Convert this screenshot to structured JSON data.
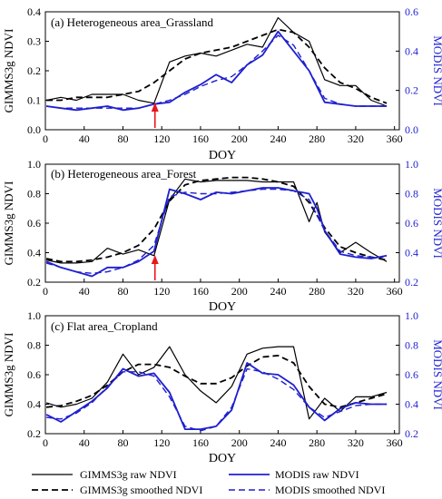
{
  "colors": {
    "gimms": "#000000",
    "modis": "#1f1fd0",
    "arrow": "#e8161b"
  },
  "legend": {
    "gimms_raw": "GIMMS3g raw NDVI",
    "gimms_smoothed": "GIMMS3g smoothed NDVI",
    "modis_raw": "MODIS raw NDVI",
    "modis_smoothed": "MODIS smoothed NDVI"
  },
  "chart_data": [
    {
      "type": "line",
      "title": "(a) Heterogeneous area_Grassland",
      "xlabel": "DOY",
      "ylabel": "GIMMS3g NDVI",
      "y2label": "MODIS NDVI",
      "xlim": [
        0,
        365
      ],
      "xticks": [
        0,
        40,
        80,
        120,
        160,
        200,
        240,
        280,
        320,
        360
      ],
      "ylim": [
        0.0,
        0.4
      ],
      "yticks": [
        "0.0",
        "0.1",
        "0.2",
        "0.3",
        "0.4"
      ],
      "y2lim": [
        0.0,
        0.6
      ],
      "y2ticks": [
        "0.0",
        "0.2",
        "0.4",
        "0.6"
      ],
      "arrow_x": 113,
      "series": [
        {
          "name": "GIMMS3g raw NDVI",
          "axis": "left",
          "style": "solid",
          "color": "#000000",
          "x": [
            1,
            16,
            32,
            48,
            64,
            80,
            96,
            112,
            128,
            144,
            160,
            176,
            192,
            208,
            224,
            240,
            256,
            272,
            288,
            304,
            320,
            336,
            352
          ],
          "y": [
            0.1,
            0.11,
            0.1,
            0.12,
            0.12,
            0.12,
            0.1,
            0.09,
            0.23,
            0.25,
            0.26,
            0.25,
            0.27,
            0.29,
            0.28,
            0.38,
            0.33,
            0.3,
            0.17,
            0.15,
            0.15,
            0.1,
            0.08
          ]
        },
        {
          "name": "GIMMS3g smoothed NDVI",
          "axis": "left",
          "style": "dashed",
          "color": "#000000",
          "x": [
            1,
            16,
            32,
            48,
            64,
            80,
            96,
            112,
            128,
            144,
            160,
            176,
            192,
            208,
            224,
            240,
            256,
            272,
            288,
            304,
            320,
            336,
            352
          ],
          "y": [
            0.1,
            0.1,
            0.11,
            0.11,
            0.11,
            0.12,
            0.13,
            0.16,
            0.2,
            0.24,
            0.26,
            0.27,
            0.28,
            0.3,
            0.32,
            0.34,
            0.33,
            0.28,
            0.21,
            0.16,
            0.14,
            0.11,
            0.09
          ]
        },
        {
          "name": "MODIS raw NDVI",
          "axis": "right",
          "style": "solid",
          "color": "#1f1fd0",
          "x": [
            1,
            16,
            32,
            48,
            64,
            80,
            96,
            112,
            128,
            144,
            160,
            176,
            192,
            208,
            224,
            240,
            256,
            272,
            288,
            304,
            320,
            336,
            352
          ],
          "y": [
            0.12,
            0.11,
            0.1,
            0.11,
            0.12,
            0.1,
            0.11,
            0.13,
            0.14,
            0.19,
            0.23,
            0.28,
            0.24,
            0.33,
            0.38,
            0.5,
            0.4,
            0.3,
            0.14,
            0.13,
            0.12,
            0.12,
            0.12
          ]
        },
        {
          "name": "MODIS smoothed NDVI",
          "axis": "right",
          "style": "dashed",
          "color": "#1f1fd0",
          "x": [
            1,
            16,
            32,
            48,
            64,
            80,
            96,
            112,
            128,
            144,
            160,
            176,
            192,
            208,
            224,
            240,
            256,
            272,
            288,
            304,
            320,
            336,
            352
          ],
          "y": [
            0.12,
            0.11,
            0.11,
            0.11,
            0.11,
            0.11,
            0.11,
            0.13,
            0.15,
            0.18,
            0.22,
            0.25,
            0.27,
            0.33,
            0.4,
            0.48,
            0.43,
            0.3,
            0.16,
            0.13,
            0.12,
            0.12,
            0.12
          ]
        }
      ]
    },
    {
      "type": "line",
      "title": "(b) Heterogeneous area_Forest",
      "xlabel": "DOY",
      "ylabel": "GIMMS3g NDVI",
      "y2label": "MODIS NDVI",
      "xlim": [
        0,
        365
      ],
      "xticks": [
        0,
        40,
        80,
        120,
        160,
        200,
        240,
        280,
        320,
        360
      ],
      "ylim": [
        0.2,
        1.0
      ],
      "yticks": [
        "0.2",
        "0.4",
        "0.6",
        "0.8",
        "1.0"
      ],
      "y2lim": [
        0.2,
        1.0
      ],
      "y2ticks": [
        "0.2",
        "0.4",
        "0.6",
        "0.8",
        "1.0"
      ],
      "arrow_x": 113,
      "series": [
        {
          "name": "GIMMS3g raw NDVI",
          "axis": "left",
          "style": "solid",
          "color": "#000000",
          "x": [
            1,
            16,
            32,
            48,
            64,
            80,
            96,
            112,
            128,
            144,
            160,
            176,
            192,
            208,
            224,
            240,
            256,
            272,
            280,
            288,
            304,
            320,
            336,
            352
          ],
          "y": [
            0.35,
            0.33,
            0.33,
            0.34,
            0.43,
            0.39,
            0.42,
            0.38,
            0.76,
            0.9,
            0.88,
            0.89,
            0.89,
            0.89,
            0.88,
            0.88,
            0.88,
            0.61,
            0.74,
            0.54,
            0.4,
            0.47,
            0.4,
            0.34
          ]
        },
        {
          "name": "GIMMS3g smoothed NDVI",
          "axis": "left",
          "style": "dashed",
          "color": "#000000",
          "x": [
            1,
            16,
            32,
            48,
            64,
            80,
            96,
            112,
            128,
            144,
            160,
            176,
            192,
            208,
            224,
            240,
            256,
            272,
            288,
            304,
            320,
            336,
            352
          ],
          "y": [
            0.36,
            0.34,
            0.34,
            0.35,
            0.37,
            0.4,
            0.45,
            0.56,
            0.75,
            0.86,
            0.89,
            0.9,
            0.91,
            0.91,
            0.9,
            0.88,
            0.85,
            0.74,
            0.57,
            0.44,
            0.4,
            0.37,
            0.35
          ]
        },
        {
          "name": "MODIS raw NDVI",
          "axis": "right",
          "style": "solid",
          "color": "#1f1fd0",
          "x": [
            1,
            16,
            32,
            48,
            64,
            80,
            96,
            112,
            128,
            144,
            160,
            176,
            192,
            208,
            224,
            240,
            256,
            272,
            280,
            288,
            304,
            320,
            336,
            352
          ],
          "y": [
            0.34,
            0.3,
            0.27,
            0.24,
            0.3,
            0.3,
            0.34,
            0.41,
            0.83,
            0.8,
            0.76,
            0.81,
            0.8,
            0.82,
            0.84,
            0.84,
            0.82,
            0.8,
            0.7,
            0.55,
            0.39,
            0.37,
            0.36,
            0.38
          ]
        },
        {
          "name": "MODIS smoothed NDVI",
          "axis": "right",
          "style": "dashed",
          "color": "#1f1fd0",
          "x": [
            1,
            16,
            32,
            48,
            64,
            80,
            96,
            112,
            128,
            144,
            160,
            176,
            192,
            208,
            224,
            240,
            256,
            272,
            288,
            304,
            320,
            336,
            352
          ],
          "y": [
            0.33,
            0.3,
            0.27,
            0.26,
            0.27,
            0.3,
            0.35,
            0.45,
            0.78,
            0.81,
            0.8,
            0.8,
            0.81,
            0.82,
            0.83,
            0.83,
            0.82,
            0.76,
            0.55,
            0.41,
            0.38,
            0.37,
            0.37
          ]
        }
      ]
    },
    {
      "type": "line",
      "title": "(c) Flat area_Cropland",
      "xlabel": "DOY",
      "ylabel": "GIMMS3g NDVI",
      "y2label": "MODIS NDVI",
      "xlim": [
        0,
        365
      ],
      "xticks": [
        0,
        40,
        80,
        120,
        160,
        200,
        240,
        280,
        320,
        360
      ],
      "ylim": [
        0.2,
        1.0
      ],
      "yticks": [
        "0.2",
        "0.4",
        "0.6",
        "0.8",
        "1.0"
      ],
      "y2lim": [
        0.2,
        1.0
      ],
      "y2ticks": [
        "0.2",
        "0.4",
        "0.6",
        "0.8",
        "1.0"
      ],
      "series": [
        {
          "name": "GIMMS3g raw NDVI",
          "axis": "left",
          "style": "solid",
          "color": "#000000",
          "x": [
            1,
            16,
            32,
            48,
            64,
            80,
            96,
            112,
            128,
            144,
            160,
            176,
            192,
            208,
            224,
            240,
            256,
            272,
            288,
            304,
            320,
            336,
            352
          ],
          "y": [
            0.41,
            0.38,
            0.4,
            0.44,
            0.55,
            0.74,
            0.6,
            0.65,
            0.79,
            0.6,
            0.49,
            0.41,
            0.52,
            0.74,
            0.78,
            0.79,
            0.79,
            0.3,
            0.44,
            0.35,
            0.45,
            0.45,
            0.48
          ]
        },
        {
          "name": "GIMMS3g smoothed NDVI",
          "axis": "left",
          "style": "dashed",
          "color": "#000000",
          "x": [
            1,
            16,
            32,
            48,
            64,
            80,
            96,
            112,
            128,
            144,
            160,
            176,
            192,
            208,
            224,
            240,
            256,
            272,
            288,
            304,
            320,
            336,
            352
          ],
          "y": [
            0.38,
            0.39,
            0.42,
            0.46,
            0.53,
            0.62,
            0.67,
            0.67,
            0.65,
            0.59,
            0.54,
            0.54,
            0.58,
            0.66,
            0.72,
            0.73,
            0.68,
            0.52,
            0.4,
            0.38,
            0.41,
            0.44,
            0.47
          ]
        },
        {
          "name": "MODIS raw NDVI",
          "axis": "right",
          "style": "solid",
          "color": "#1f1fd0",
          "x": [
            1,
            16,
            32,
            48,
            64,
            80,
            96,
            112,
            128,
            144,
            160,
            176,
            192,
            208,
            224,
            240,
            256,
            272,
            288,
            304,
            320,
            336,
            352
          ],
          "y": [
            0.33,
            0.28,
            0.35,
            0.42,
            0.51,
            0.64,
            0.59,
            0.61,
            0.48,
            0.23,
            0.23,
            0.25,
            0.36,
            0.68,
            0.61,
            0.6,
            0.53,
            0.38,
            0.29,
            0.37,
            0.41,
            0.4,
            0.4
          ]
        },
        {
          "name": "MODIS smoothed NDVI",
          "axis": "right",
          "style": "dashed",
          "color": "#1f1fd0",
          "x": [
            1,
            16,
            32,
            48,
            64,
            80,
            96,
            112,
            128,
            144,
            160,
            176,
            192,
            208,
            224,
            240,
            256,
            272,
            288,
            304,
            320,
            336,
            352
          ],
          "y": [
            0.31,
            0.3,
            0.34,
            0.41,
            0.52,
            0.62,
            0.62,
            0.59,
            0.45,
            0.25,
            0.22,
            0.25,
            0.38,
            0.64,
            0.62,
            0.57,
            0.5,
            0.38,
            0.31,
            0.35,
            0.39,
            0.4,
            0.4
          ]
        }
      ]
    }
  ]
}
